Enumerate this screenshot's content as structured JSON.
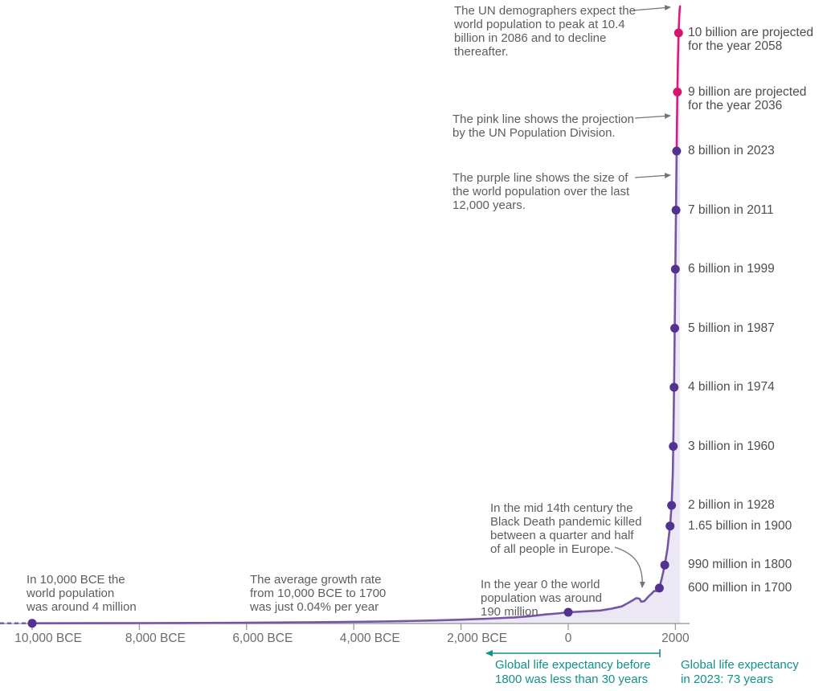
{
  "colors": {
    "historic_line": "#7456a4",
    "historic_dot": "#53328f",
    "projection_line": "#e0187d",
    "projection_dot": "#d6136f",
    "area_fill": "#ebe7f5",
    "axis": "#a0a0a0",
    "annotation_text": "#5d5d5d",
    "milestone_text": "#4d4d4d",
    "teal": "#12908a",
    "arrow": "#757575"
  },
  "chart_data": {
    "type": "line",
    "xlabel": "",
    "ylabel": "",
    "grid": false,
    "x_range_years": [
      -10600,
      2086
    ],
    "y_range_billions": [
      0,
      10.45
    ],
    "x_ticks": [
      {
        "year": -10000,
        "label": "10,000 BCE"
      },
      {
        "year": -8000,
        "label": "8,000 BCE"
      },
      {
        "year": -6000,
        "label": "6,000 BCE"
      },
      {
        "year": -4000,
        "label": "4,000 BCE"
      },
      {
        "year": -2000,
        "label": "2,000 BCE"
      },
      {
        "year": 0,
        "label": "0"
      },
      {
        "year": 2000,
        "label": "2000"
      }
    ],
    "series": [
      {
        "name": "World population over the last 12,000 years",
        "style": "historic",
        "points": [
          [
            -10000,
            0.004
          ],
          [
            -9000,
            0.005
          ],
          [
            -8000,
            0.007
          ],
          [
            -7000,
            0.009
          ],
          [
            -6000,
            0.012
          ],
          [
            -5000,
            0.019
          ],
          [
            -4000,
            0.028
          ],
          [
            -3500,
            0.034
          ],
          [
            -3000,
            0.042
          ],
          [
            -2500,
            0.052
          ],
          [
            -2000,
            0.065
          ],
          [
            -1500,
            0.082
          ],
          [
            -1000,
            0.103
          ],
          [
            -700,
            0.125
          ],
          [
            -400,
            0.155
          ],
          [
            -200,
            0.17
          ],
          [
            0,
            0.19
          ],
          [
            200,
            0.2
          ],
          [
            400,
            0.21
          ],
          [
            600,
            0.22
          ],
          [
            800,
            0.25
          ],
          [
            1000,
            0.29
          ],
          [
            1100,
            0.34
          ],
          [
            1200,
            0.39
          ],
          [
            1270,
            0.43
          ],
          [
            1330,
            0.42
          ],
          [
            1360,
            0.37
          ],
          [
            1420,
            0.38
          ],
          [
            1500,
            0.46
          ],
          [
            1560,
            0.51
          ],
          [
            1600,
            0.55
          ],
          [
            1660,
            0.55
          ],
          [
            1700,
            0.6
          ],
          [
            1750,
            0.78
          ],
          [
            1800,
            0.99
          ],
          [
            1850,
            1.26
          ],
          [
            1900,
            1.65
          ],
          [
            1928,
            2.0
          ],
          [
            1950,
            2.54
          ],
          [
            1960,
            3.0
          ],
          [
            1974,
            4.0
          ],
          [
            1987,
            5.0
          ],
          [
            1999,
            6.0
          ],
          [
            2011,
            7.0
          ],
          [
            2023,
            8.0
          ]
        ]
      },
      {
        "name": "UN Population Division projection",
        "style": "projection",
        "points": [
          [
            2023,
            8.0
          ],
          [
            2036,
            9.0
          ],
          [
            2048,
            9.6
          ],
          [
            2058,
            10.0
          ],
          [
            2070,
            10.26
          ],
          [
            2080,
            10.4
          ],
          [
            2086,
            10.45
          ]
        ]
      }
    ],
    "curve_dots": [
      {
        "year": -10000,
        "pop_billions": 0.004
      },
      {
        "year": 0,
        "pop_billions": 0.19
      }
    ],
    "milestones": [
      {
        "year": 2058,
        "pop_billions": 10,
        "projected": true,
        "label": "10 billion are projected\nfor the year 2058"
      },
      {
        "year": 2036,
        "pop_billions": 9,
        "projected": true,
        "label": "9 billion are projected\nfor the year 2036"
      },
      {
        "year": 2023,
        "pop_billions": 8,
        "projected": false,
        "label": "8 billion in 2023"
      },
      {
        "year": 2011,
        "pop_billions": 7,
        "projected": false,
        "label": "7 billion in 2011"
      },
      {
        "year": 1999,
        "pop_billions": 6,
        "projected": false,
        "label": "6 billion in 1999"
      },
      {
        "year": 1987,
        "pop_billions": 5,
        "projected": false,
        "label": "5 billion in 1987"
      },
      {
        "year": 1974,
        "pop_billions": 4,
        "projected": false,
        "label": "4 billion in 1974"
      },
      {
        "year": 1960,
        "pop_billions": 3,
        "projected": false,
        "label": "3 billion in 1960"
      },
      {
        "year": 1928,
        "pop_billions": 2,
        "projected": false,
        "label": "2 billion in 1928"
      },
      {
        "year": 1900,
        "pop_billions": 1.65,
        "projected": false,
        "label": "1.65 billion in 1900"
      },
      {
        "year": 1800,
        "pop_billions": 0.99,
        "projected": false,
        "label": "990 million in 1800"
      },
      {
        "year": 1700,
        "pop_billions": 0.6,
        "projected": false,
        "label": "600 million in 1700"
      }
    ],
    "annotations": {
      "un_peak": "The UN demographers expect the\nworld population to peak at 10.4\nbillion in 2086 and to decline\nthereafter.",
      "pink_line": "The pink line shows the projection\nby the UN Population Division.",
      "purple_line": "The purple line shows the size of\nthe world population over the last\n12,000 years.",
      "black_death": "In the mid 14th century the\nBlack Death pandemic killed\nbetween a quarter and half\nof all people in Europe.",
      "bce_10000": "In 10,000 BCE the\nworld population\nwas around 4 million",
      "growth_rate": "The average growth rate\nfrom 10,000 BCE to 1700\nwas just 0.04% per year",
      "year_zero": "In the year 0 the world\npopulation was around\n190 million"
    },
    "life_expectancy": {
      "before": "Global life expectancy before\n1800 was less than 30 years",
      "now": "Global life expectancy\nin 2023: 73 years"
    }
  }
}
